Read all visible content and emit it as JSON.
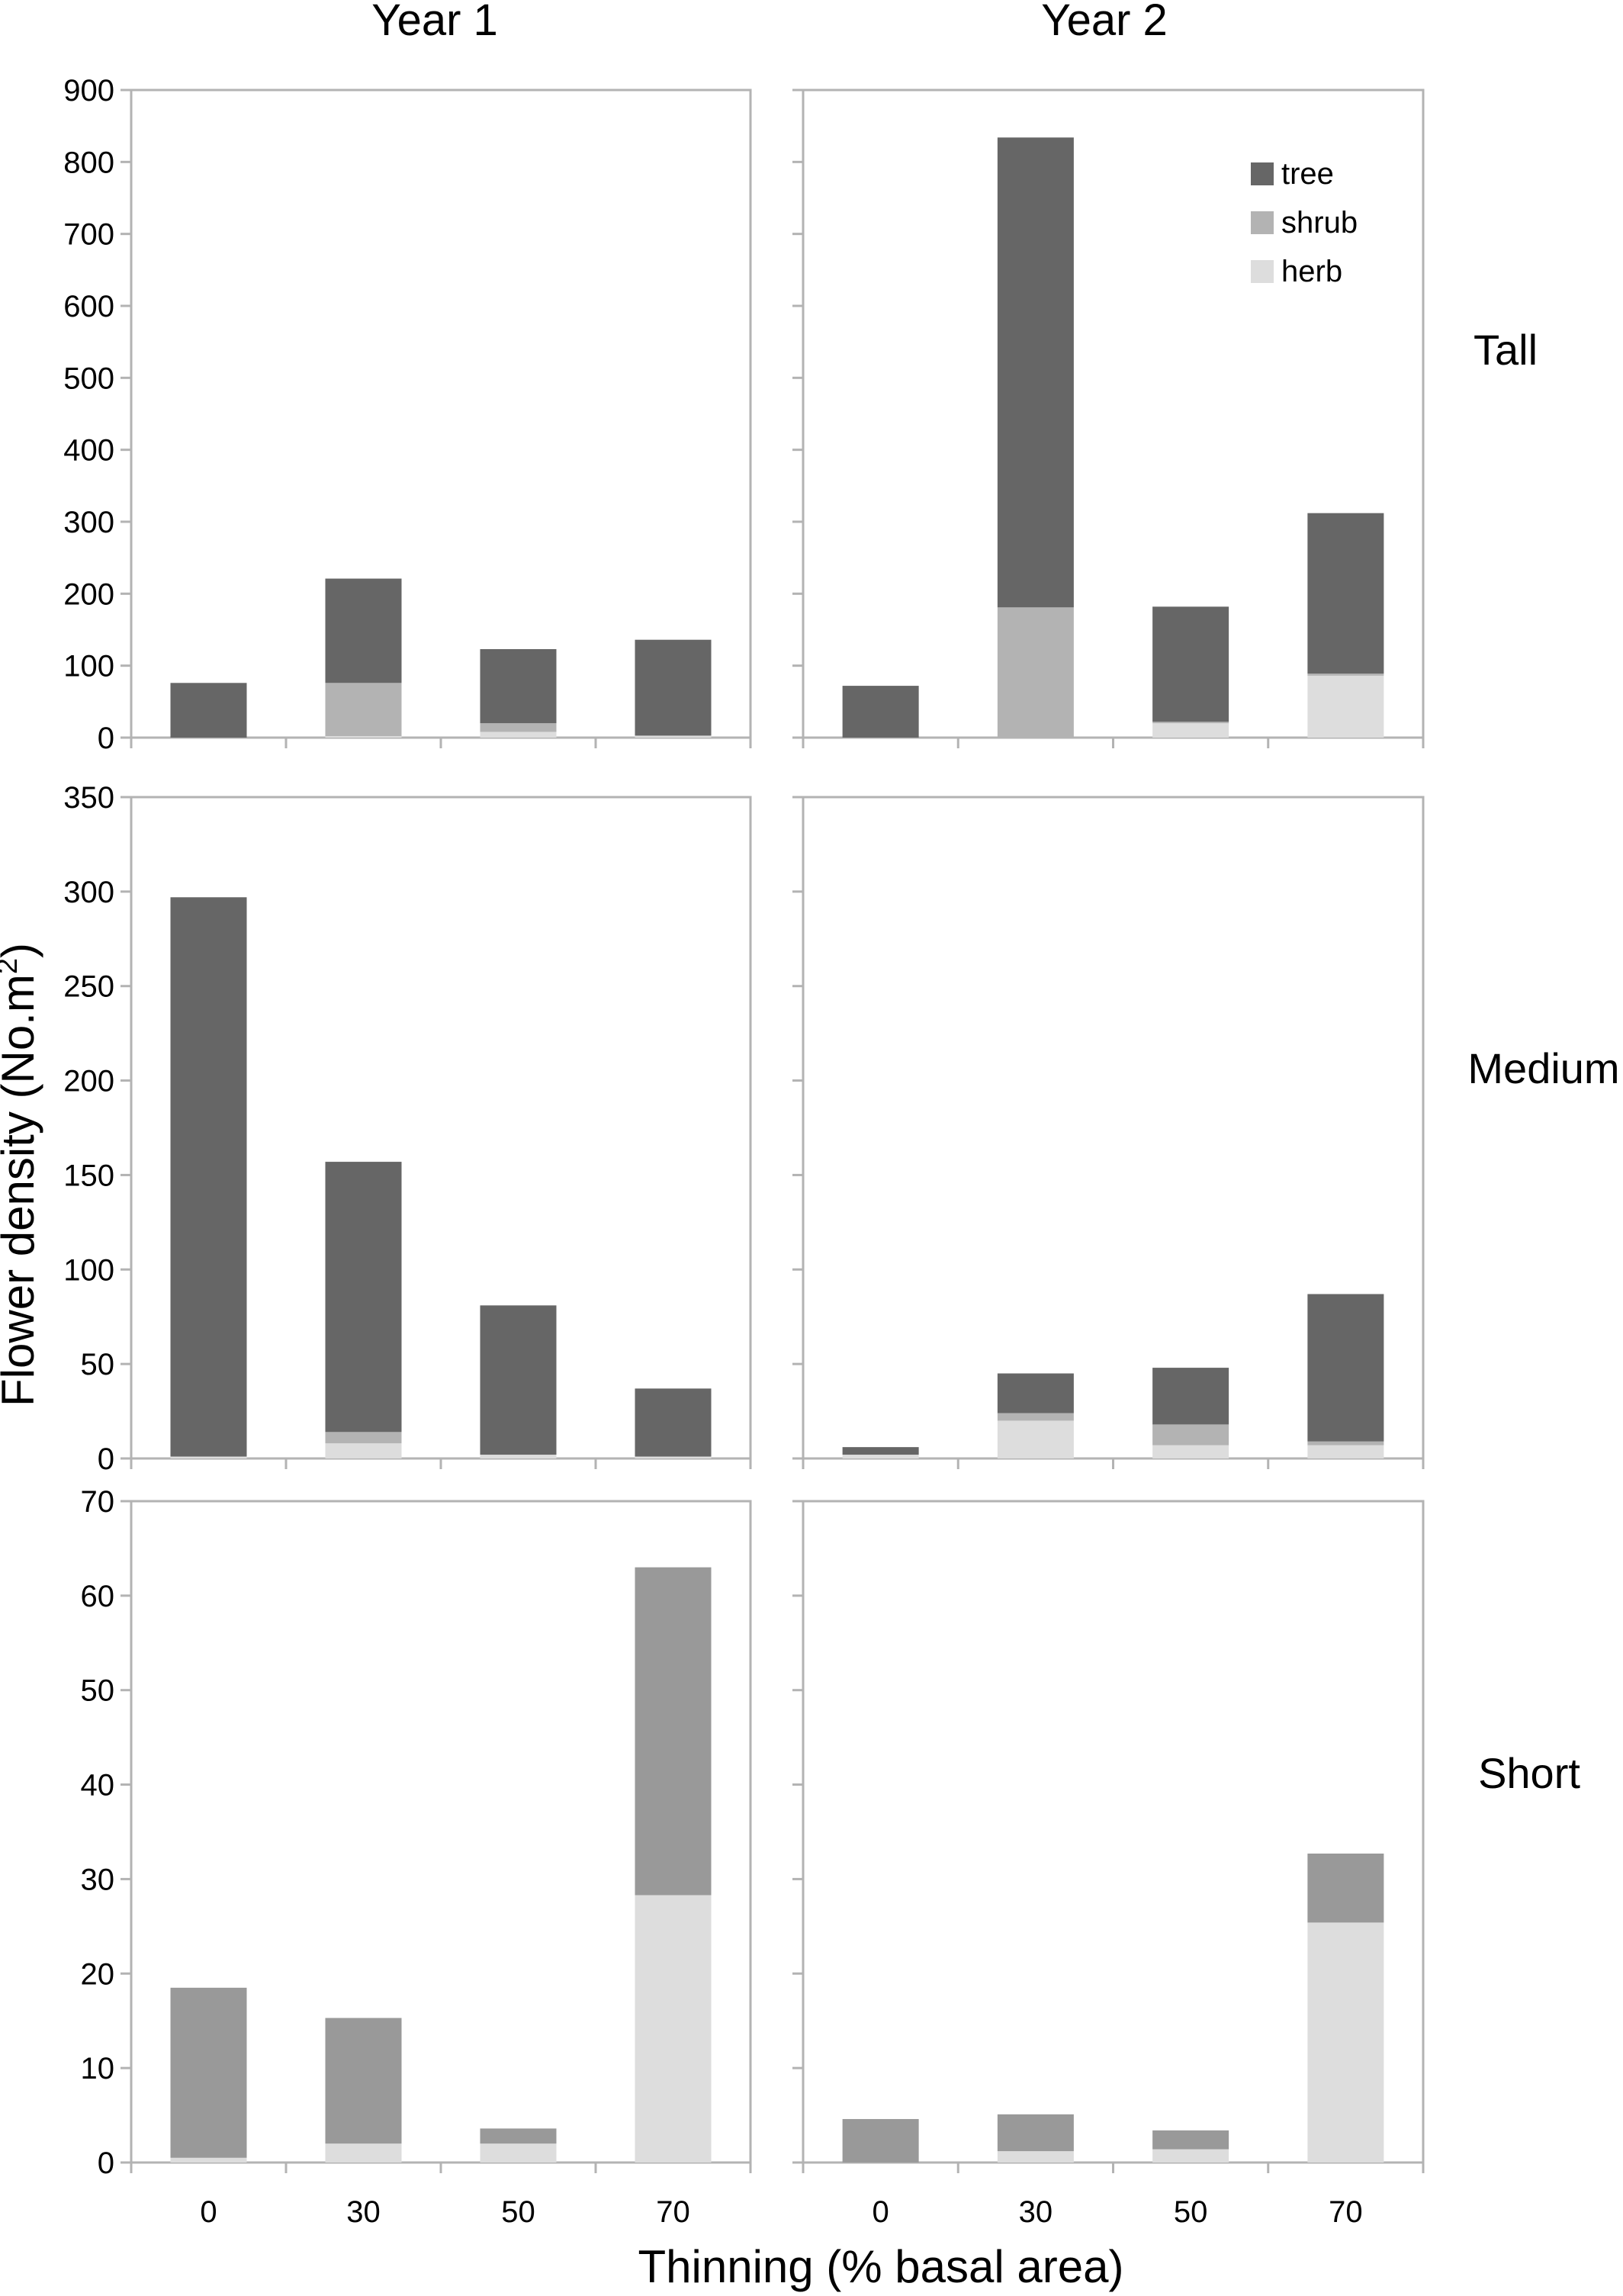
{
  "figure": {
    "column_titles": [
      "Year 1",
      "Year 2"
    ],
    "row_labels": [
      "Tall",
      "Medium",
      "Short"
    ],
    "x_axis_title": "Thinning (% basal area)",
    "y_axis_title": "Flower density (No.m",
    "y_axis_title_superscript": "2",
    "y_axis_title_close": ")"
  },
  "chart_data": {
    "type": "bar",
    "stacked": true,
    "categories": [
      "0",
      "30",
      "50",
      "70"
    ],
    "series_order": [
      "herb",
      "shrub",
      "tree"
    ],
    "legend": {
      "placement": "top-right (Tall, Year 2 panel)",
      "entries": [
        {
          "name": "tree",
          "color": "#666666"
        },
        {
          "name": "shrub",
          "color": "#b3b3b3"
        },
        {
          "name": "herb",
          "color": "#dddddd"
        }
      ]
    },
    "panels": [
      {
        "row": "Tall",
        "column": "Year 1",
        "ylim": [
          0,
          900
        ],
        "yticks": [
          0,
          100,
          200,
          300,
          400,
          500,
          600,
          700,
          800,
          900
        ],
        "tree": [
          76,
          145,
          103,
          133
        ],
        "shrub": [
          0,
          74,
          12,
          1
        ],
        "herb": [
          0,
          2,
          8,
          2
        ]
      },
      {
        "row": "Tall",
        "column": "Year 2",
        "ylim": [
          0,
          900
        ],
        "yticks": [
          0,
          100,
          200,
          300,
          400,
          500,
          600,
          700,
          800,
          900
        ],
        "tree": [
          72,
          653,
          160,
          223
        ],
        "shrub": [
          0,
          181,
          2,
          3
        ],
        "herb": [
          0,
          0,
          20,
          86
        ]
      },
      {
        "row": "Medium",
        "column": "Year 1",
        "ylim": [
          0,
          350
        ],
        "yticks": [
          0,
          50,
          100,
          150,
          200,
          250,
          300,
          350
        ],
        "tree": [
          296,
          143,
          79,
          36
        ],
        "shrub": [
          0,
          6,
          0,
          0
        ],
        "herb": [
          1,
          8,
          2,
          1
        ]
      },
      {
        "row": "Medium",
        "column": "Year 2",
        "ylim": [
          0,
          350
        ],
        "yticks": [
          0,
          50,
          100,
          150,
          200,
          250,
          300,
          350
        ],
        "tree": [
          4,
          21,
          30,
          78
        ],
        "shrub": [
          0,
          4,
          11,
          2
        ],
        "herb": [
          2,
          20,
          7,
          7
        ]
      },
      {
        "row": "Short",
        "column": "Year 1",
        "ylim": [
          0,
          70
        ],
        "yticks": [
          0,
          10,
          20,
          30,
          40,
          50,
          60,
          70
        ],
        "tree": [
          0,
          0,
          0,
          0
        ],
        "shrub": [
          18,
          13.3,
          1.6,
          34.7
        ],
        "herb": [
          0.5,
          2.0,
          2.0,
          28.3
        ]
      },
      {
        "row": "Short",
        "column": "Year 2",
        "ylim": [
          0,
          70
        ],
        "yticks": [
          0,
          10,
          20,
          30,
          40,
          50,
          60,
          70
        ],
        "tree": [
          0,
          0,
          0,
          0
        ],
        "shrub": [
          4.6,
          3.9,
          2.0,
          7.3
        ],
        "herb": [
          0,
          1.2,
          1.4,
          25.4
        ]
      }
    ],
    "colors": {
      "tree": "#666666",
      "shrub": "#b3b3b3",
      "herb": "#dddddd",
      "short_shrub": "#999999"
    }
  }
}
